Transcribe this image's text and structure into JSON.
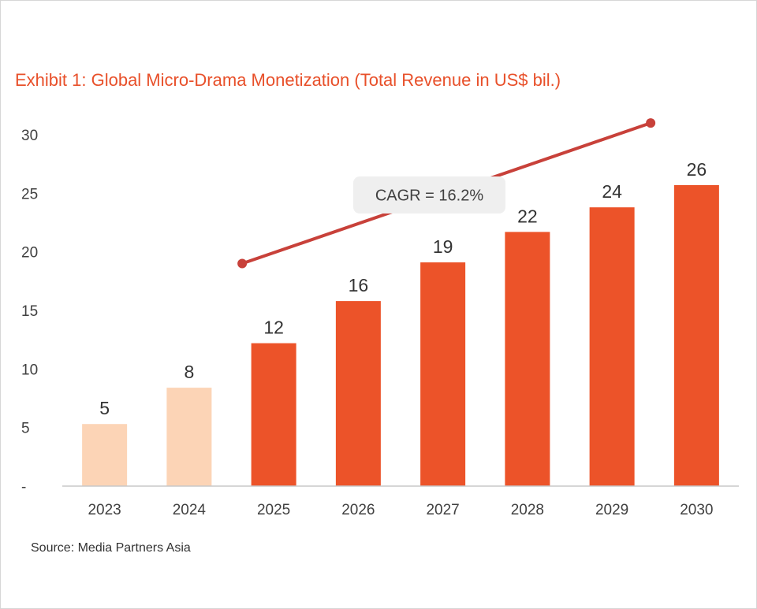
{
  "title": "Exhibit 1: Global Micro-Drama Monetization (Total Revenue in US$ bil.)",
  "source": "Source: Media Partners Asia",
  "colors": {
    "historical": "#fcd4b6",
    "forecast": "#ec5329",
    "trend": "#c8413a",
    "axis": "#c8c8c8",
    "callout_bg": "#efefef"
  },
  "chart_data": {
    "type": "bar",
    "categories": [
      "2023",
      "2024",
      "2025",
      "2026",
      "2027",
      "2028",
      "2029",
      "2030"
    ],
    "values": [
      5.3,
      8.4,
      12.2,
      15.8,
      19.1,
      21.7,
      23.8,
      25.7
    ],
    "data_labels": [
      "5",
      "8",
      "12",
      "16",
      "19",
      "22",
      "24",
      "26"
    ],
    "bar_kind": [
      "historical",
      "historical",
      "forecast",
      "forecast",
      "forecast",
      "forecast",
      "forecast",
      "forecast"
    ],
    "ylim": [
      0,
      30
    ],
    "yticks": [
      0,
      5,
      10,
      15,
      20,
      25,
      30
    ],
    "ytick_labels": [
      "-",
      "5",
      "10",
      "15",
      "20",
      "25",
      "30"
    ],
    "xlabel": "",
    "ylabel": "",
    "grid": false,
    "annotation": {
      "text": "CAGR = 16.2%",
      "trend_from_category": "2025",
      "trend_to_category": "2029",
      "trend_from_value": 19,
      "trend_to_value": 31
    }
  }
}
